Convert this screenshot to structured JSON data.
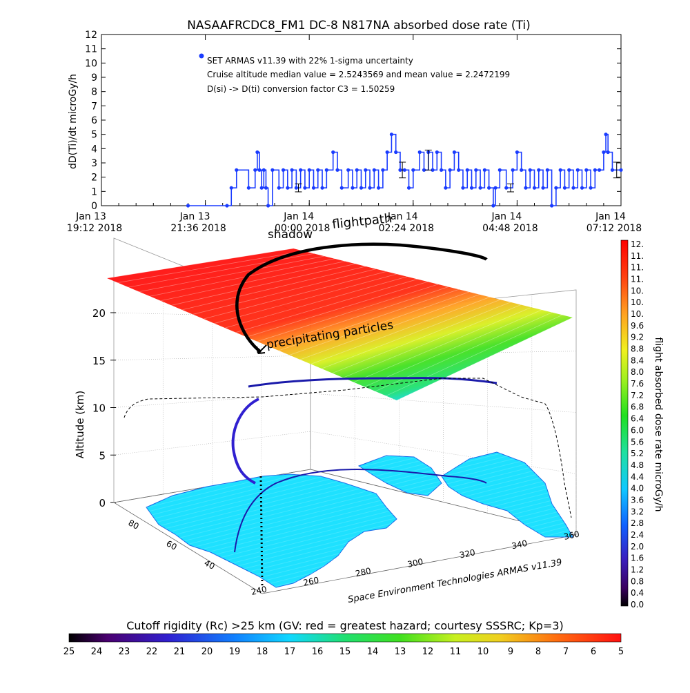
{
  "chart_data": [
    {
      "type": "line",
      "title": "NASAAFRCDC8_FM1 DC-8   N817NA absorbed dose rate (Ti)",
      "ylabel": "dD(Ti)/dt microGy/h",
      "ylim": [
        0,
        12
      ],
      "y_ticks": [
        "0",
        "1",
        "2",
        "3",
        "4",
        "5",
        "6",
        "7",
        "8",
        "9",
        "10",
        "11",
        "12"
      ],
      "x_ticks": [
        {
          "line1": "Jan 13",
          "line2": "19:12 2018"
        },
        {
          "line1": "Jan 13",
          "line2": "21:36 2018"
        },
        {
          "line1": "Jan 14",
          "line2": "00:00 2018"
        },
        {
          "line1": "Jan 14",
          "line2": "02:24 2018"
        },
        {
          "line1": "Jan 14",
          "line2": "04:48 2018"
        },
        {
          "line1": "Jan 14",
          "line2": "07:12 2018"
        }
      ],
      "x_unit": "hours after Jan 13 19:12 2018",
      "xlim": [
        0,
        12
      ],
      "legend": {
        "symbol_color": "#1a3cff",
        "line1": "SET ARMAS v11.39 with 22% 1-sigma uncertainty",
        "line2": "Cruise altitude median value = 2.5243569 and mean value = 2.2472199",
        "line3": "D(si) -> D(ti) conversion factor C3 = 1.50259"
      },
      "series": [
        {
          "color": "#1a3cff",
          "points": [
            [
              2.0,
              0.0
            ],
            [
              2.9,
              0.0
            ],
            [
              3.0,
              1.25
            ],
            [
              3.12,
              2.5
            ],
            [
              3.4,
              1.25
            ],
            [
              3.55,
              2.5
            ],
            [
              3.6,
              3.75
            ],
            [
              3.65,
              2.5
            ],
            [
              3.7,
              1.25
            ],
            [
              3.75,
              2.5
            ],
            [
              3.8,
              1.25
            ],
            [
              3.85,
              0.0
            ],
            [
              3.95,
              2.5
            ],
            [
              4.1,
              1.25
            ],
            [
              4.2,
              2.5
            ],
            [
              4.3,
              1.25
            ],
            [
              4.4,
              2.5
            ],
            [
              4.5,
              1.25
            ],
            [
              4.6,
              2.5
            ],
            [
              4.7,
              1.25
            ],
            [
              4.8,
              2.5
            ],
            [
              4.9,
              1.25
            ],
            [
              5.0,
              2.5
            ],
            [
              5.1,
              1.25
            ],
            [
              5.2,
              2.5
            ],
            [
              5.35,
              3.75
            ],
            [
              5.45,
              2.5
            ],
            [
              5.55,
              1.25
            ],
            [
              5.7,
              2.5
            ],
            [
              5.8,
              1.25
            ],
            [
              5.9,
              2.5
            ],
            [
              6.0,
              1.25
            ],
            [
              6.1,
              2.5
            ],
            [
              6.2,
              1.25
            ],
            [
              6.3,
              2.5
            ],
            [
              6.4,
              1.25
            ],
            [
              6.5,
              2.5
            ],
            [
              6.6,
              3.75
            ],
            [
              6.7,
              5.0
            ],
            [
              6.8,
              3.75
            ],
            [
              6.9,
              2.5
            ],
            [
              7.0,
              2.5
            ],
            [
              7.1,
              1.25
            ],
            [
              7.2,
              2.5
            ],
            [
              7.35,
              3.75
            ],
            [
              7.45,
              2.5
            ],
            [
              7.55,
              3.75
            ],
            [
              7.65,
              2.5
            ],
            [
              7.75,
              3.75
            ],
            [
              7.85,
              2.5
            ],
            [
              7.95,
              1.25
            ],
            [
              8.05,
              2.5
            ],
            [
              8.15,
              3.75
            ],
            [
              8.25,
              2.5
            ],
            [
              8.35,
              1.25
            ],
            [
              8.45,
              2.5
            ],
            [
              8.55,
              1.25
            ],
            [
              8.65,
              2.5
            ],
            [
              8.75,
              1.25
            ],
            [
              8.85,
              2.5
            ],
            [
              8.95,
              1.25
            ],
            [
              9.05,
              0.0
            ],
            [
              9.1,
              1.25
            ],
            [
              9.2,
              2.5
            ],
            [
              9.35,
              1.25
            ],
            [
              9.5,
              2.5
            ],
            [
              9.6,
              3.75
            ],
            [
              9.7,
              2.5
            ],
            [
              9.8,
              1.25
            ],
            [
              9.9,
              2.5
            ],
            [
              10.0,
              1.25
            ],
            [
              10.1,
              2.5
            ],
            [
              10.2,
              1.25
            ],
            [
              10.3,
              2.5
            ],
            [
              10.4,
              0.0
            ],
            [
              10.5,
              1.25
            ],
            [
              10.6,
              2.5
            ],
            [
              10.7,
              1.25
            ],
            [
              10.8,
              2.5
            ],
            [
              10.9,
              1.25
            ],
            [
              11.0,
              2.5
            ],
            [
              11.1,
              1.25
            ],
            [
              11.2,
              2.5
            ],
            [
              11.3,
              1.25
            ],
            [
              11.4,
              2.5
            ],
            [
              11.5,
              2.5
            ],
            [
              11.6,
              3.75
            ],
            [
              11.65,
              5.0
            ],
            [
              11.7,
              3.75
            ],
            [
              11.8,
              2.5
            ],
            [
              12.0,
              2.5
            ]
          ]
        }
      ],
      "error_bars": [
        {
          "x": 4.55,
          "y": 1.25,
          "err": 0.28
        },
        {
          "x": 6.95,
          "y": 2.5,
          "err": 0.55
        },
        {
          "x": 7.55,
          "y": 3.2,
          "err": 0.7
        },
        {
          "x": 9.45,
          "y": 1.25,
          "err": 0.28
        },
        {
          "x": 11.9,
          "y": 2.5,
          "err": 0.55
        }
      ]
    },
    {
      "type": "3d-surface",
      "ylabel": "Altitude (km)",
      "z_ticks": [
        "0",
        "5",
        "10",
        "15",
        "20"
      ],
      "lat_ticks": [
        "40",
        "60",
        "80"
      ],
      "lon_ticks": [
        "240",
        "260",
        "280",
        "300",
        "320",
        "340",
        "360"
      ],
      "annotation_shadow": "shadow",
      "annotation_path": "flightpath",
      "annotation_particles": "precipitating particles",
      "credit": "Space Environment Technologies ARMAS v11.39"
    },
    {
      "type": "colorbar",
      "orientation": "vertical",
      "label": "flight absorbed dose rate microGy/h",
      "ticks": [
        "12.",
        "11.",
        "11.",
        "11.",
        "10.",
        "10.",
        "10.",
        "9.6",
        "9.2",
        "8.8",
        "8.4",
        "8.0",
        "7.6",
        "7.2",
        "6.8",
        "6.4",
        "6.0",
        "5.6",
        "5.2",
        "4.8",
        "4.4",
        "4.0",
        "3.6",
        "3.2",
        "2.8",
        "2.4",
        "2.0",
        "1.6",
        "1.2",
        "0.8",
        "0.4",
        "0.0"
      ]
    },
    {
      "type": "colorbar",
      "orientation": "horizontal",
      "title": "Cutoff rigidity (Rc) >25 km (GV: red = greatest hazard; courtesy SSSRC; Kp=3)",
      "ticks": [
        "25",
        "24",
        "23",
        "22",
        "21",
        "20",
        "19",
        "18",
        "17",
        "16",
        "15",
        "14",
        "13",
        "12",
        "11",
        "10",
        "9",
        "8",
        "7",
        "6",
        "5"
      ]
    }
  ],
  "colors": {
    "series_blue": "#1a3cff",
    "land": "#1ee1ff",
    "red": "#ff1a1a",
    "green": "#20e020"
  }
}
